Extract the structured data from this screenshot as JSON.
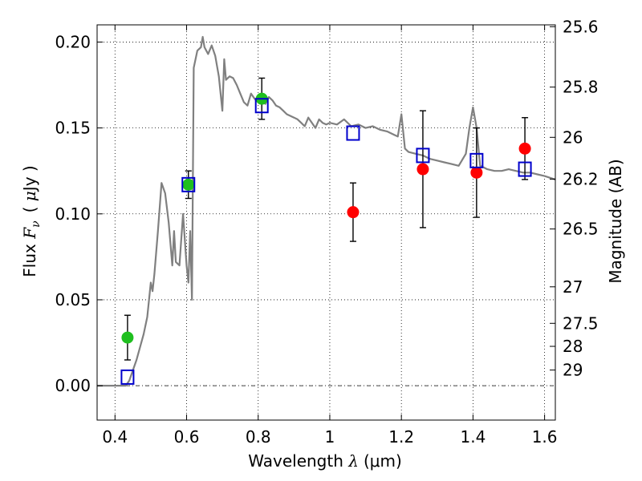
{
  "chart_data": {
    "type": "scatter",
    "title": "",
    "xlabel": "Wavelength  λ (μm)",
    "xlabel_parts": {
      "prefix": "Wavelength  ",
      "symbol": "λ",
      "unit": "(μm)"
    },
    "ylabel": "Flux  Fν  ( μJy )",
    "ylabel_parts": {
      "prefix": "Flux  ",
      "symbol": "F",
      "sub": "ν",
      "open": "( ",
      "mu": "μ",
      "unit": "Jy )"
    },
    "y2label": "Magnitude (AB)",
    "xlim": [
      0.35,
      1.63
    ],
    "ylim": [
      -0.02,
      0.21
    ],
    "grid": true,
    "x_ticks": [
      0.4,
      0.6,
      0.8,
      1.0,
      1.2,
      1.4,
      1.6
    ],
    "x_tick_labels": [
      "0.4",
      "0.6",
      "0.8",
      "1",
      "1.2",
      "1.4",
      "1.6"
    ],
    "y_ticks": [
      0.0,
      0.05,
      0.1,
      0.15,
      0.2
    ],
    "y_tick_labels": [
      "0.00",
      "0.05",
      "0.10",
      "0.15",
      "0.20"
    ],
    "mag_ticks": [
      25.6,
      25.8,
      26,
      26.2,
      26.5,
      27,
      27.5,
      28,
      29
    ],
    "mag_tick_labels": [
      "25.6",
      "25.8",
      "26",
      "26.2",
      "26.5",
      "27",
      "27.5",
      "28",
      "29"
    ],
    "series": [
      {
        "kind": "line",
        "color": "#808080",
        "x": [
          0.35,
          0.43,
          0.44,
          0.46,
          0.48,
          0.49,
          0.5,
          0.505,
          0.51,
          0.52,
          0.53,
          0.54,
          0.55,
          0.56,
          0.565,
          0.57,
          0.58,
          0.59,
          0.6,
          0.605,
          0.61,
          0.615,
          0.62,
          0.63,
          0.64,
          0.645,
          0.65,
          0.66,
          0.67,
          0.68,
          0.69,
          0.7,
          0.705,
          0.71,
          0.72,
          0.73,
          0.74,
          0.75,
          0.76,
          0.77,
          0.78,
          0.79,
          0.8,
          0.81,
          0.82,
          0.83,
          0.84,
          0.85,
          0.86,
          0.87,
          0.88,
          0.89,
          0.9,
          0.91,
          0.92,
          0.93,
          0.94,
          0.95,
          0.96,
          0.97,
          0.98,
          0.99,
          1.0,
          1.02,
          1.04,
          1.06,
          1.08,
          1.1,
          1.12,
          1.14,
          1.16,
          1.18,
          1.19,
          1.2,
          1.21,
          1.22,
          1.24,
          1.26,
          1.28,
          1.3,
          1.32,
          1.34,
          1.36,
          1.38,
          1.39,
          1.4,
          1.41,
          1.42,
          1.43,
          1.44,
          1.46,
          1.48,
          1.5,
          1.52,
          1.54,
          1.56,
          1.58,
          1.6,
          1.63
        ],
        "y": [
          0.0,
          0.0,
          0.003,
          0.015,
          0.03,
          0.04,
          0.06,
          0.055,
          0.065,
          0.09,
          0.118,
          0.112,
          0.095,
          0.07,
          0.09,
          0.072,
          0.07,
          0.1,
          0.07,
          0.06,
          0.09,
          0.05,
          0.185,
          0.195,
          0.197,
          0.203,
          0.197,
          0.193,
          0.198,
          0.192,
          0.18,
          0.16,
          0.19,
          0.178,
          0.18,
          0.179,
          0.175,
          0.17,
          0.165,
          0.163,
          0.17,
          0.167,
          0.165,
          0.168,
          0.164,
          0.168,
          0.166,
          0.163,
          0.162,
          0.16,
          0.158,
          0.157,
          0.156,
          0.155,
          0.153,
          0.151,
          0.156,
          0.153,
          0.15,
          0.155,
          0.153,
          0.152,
          0.153,
          0.152,
          0.155,
          0.151,
          0.152,
          0.15,
          0.151,
          0.149,
          0.148,
          0.146,
          0.145,
          0.158,
          0.138,
          0.136,
          0.135,
          0.134,
          0.132,
          0.131,
          0.13,
          0.129,
          0.128,
          0.135,
          0.15,
          0.162,
          0.15,
          0.128,
          0.127,
          0.126,
          0.125,
          0.125,
          0.126,
          0.125,
          0.124,
          0.124,
          0.123,
          0.122,
          0.12
        ]
      },
      {
        "kind": "points",
        "marker": "circle",
        "color": "#1fbf1f",
        "x": [
          0.435,
          0.605,
          0.81
        ],
        "y": [
          0.028,
          0.117,
          0.167
        ],
        "yerr": [
          0.013,
          0.008,
          0.012
        ]
      },
      {
        "kind": "points",
        "marker": "circle",
        "color": "#ff0000",
        "x": [
          1.065,
          1.26,
          1.41,
          1.545
        ],
        "y": [
          0.101,
          0.126,
          0.124,
          0.138
        ],
        "yerr": [
          0.017,
          0.034,
          0.026,
          0.018
        ]
      },
      {
        "kind": "points",
        "marker": "square",
        "color": "#0000cc",
        "x": [
          0.435,
          0.605,
          0.81,
          1.065,
          1.26,
          1.41,
          1.545
        ],
        "y": [
          0.005,
          0.117,
          0.163,
          0.147,
          0.134,
          0.131,
          0.126
        ]
      }
    ]
  }
}
